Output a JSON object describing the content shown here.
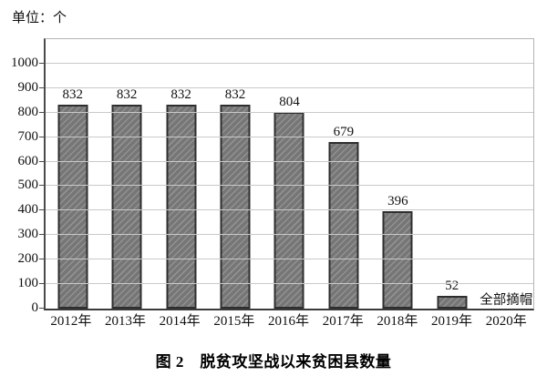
{
  "chart_data": {
    "type": "bar",
    "title": "图 2　脱贫攻坚战以来贫困县数量",
    "unit": "单位：个",
    "categories": [
      "2012年",
      "2013年",
      "2014年",
      "2015年",
      "2016年",
      "2017年",
      "2018年",
      "2019年",
      "2020年"
    ],
    "values": [
      832,
      832,
      832,
      832,
      804,
      679,
      396,
      52,
      null
    ],
    "annotation": {
      "text": "全部摘帽",
      "category": "2020年"
    },
    "ylim": [
      0,
      1100
    ],
    "ytick_step": 100,
    "ytick_max_label": 1000,
    "grid": true,
    "legend": "none",
    "colors": {
      "bar_fill": "#767676",
      "bar_hatch_light": "#919191",
      "bar_border": "#2e2e2e",
      "gridline": "#c9c9c9",
      "axis": "#3a3a3a",
      "text": "#111111",
      "background": "#ffffff"
    }
  }
}
